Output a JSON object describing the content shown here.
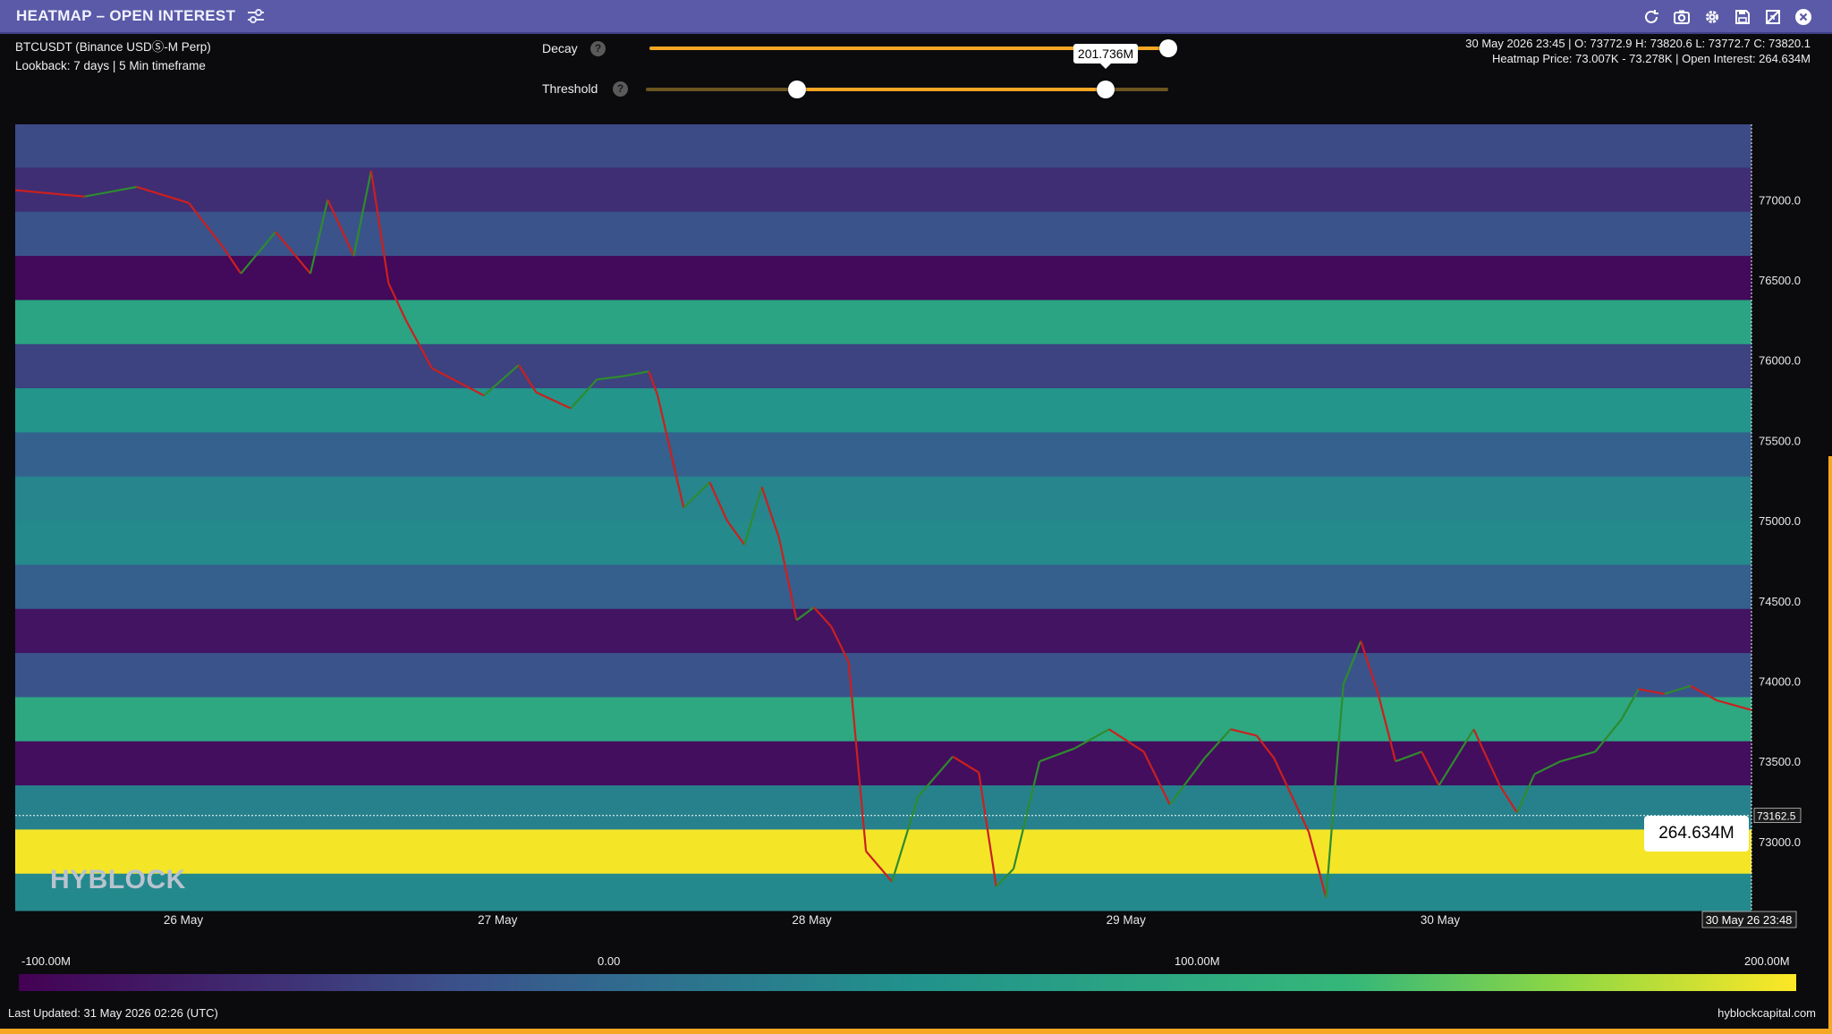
{
  "window": {
    "title": "HEATMAP – OPEN INTEREST",
    "icons": [
      "refresh-icon",
      "camera-icon",
      "gear-icon",
      "save-icon",
      "fullscreen-icon",
      "close-icon"
    ]
  },
  "info": {
    "symbol": "BTCUSDT (Binance USDⓈ-M Perp)",
    "lookback": "Lookback: 7 days | 5 Min timeframe",
    "ohlc": "30 May 2026 23:45 | O: 73772.9 H: 73820.6 L: 73772.7 C: 73820.1",
    "heatmap_info": "Heatmap Price: 73.007K - 73.278K | Open Interest: 264.634M"
  },
  "controls": {
    "decay_label": "Decay",
    "decay_level": 1.0,
    "threshold_label": "Threshold",
    "threshold_range": [
      0.29,
      0.88
    ],
    "threshold_tooltip": "201.736M",
    "help_glyph": "?"
  },
  "chart_data": {
    "type": "heatmap",
    "title": "HEATMAP – OPEN INTEREST",
    "x_ticks": [
      "26 May",
      "27 May",
      "28 May",
      "29 May",
      "30 May"
    ],
    "y_ticks": [
      "77000.0",
      "76500.0",
      "76000.0",
      "75500.0",
      "75000.0",
      "74500.0",
      "74000.0",
      "73500.0",
      "73000.0"
    ],
    "ylim": [
      72570,
      77470
    ],
    "x_range": [
      "25 May 2026 11:50",
      "30 May 2026 23:48"
    ],
    "crosshair_price": "73162.5",
    "crosshair_time": "30 May 26 23:48",
    "hover_value": "264.634M",
    "colorscale_min": "-100.00M",
    "colorscale_mid": "0.00",
    "colorscale_q3": "100.00M",
    "colorscale_max": "200.00M",
    "bands": [
      {
        "low": 77200,
        "high": 77470,
        "oi": -55
      },
      {
        "low": 76925,
        "high": 77200,
        "oi": -72
      },
      {
        "low": 76650,
        "high": 76925,
        "oi": -45
      },
      {
        "low": 76375,
        "high": 76650,
        "oi": -95
      },
      {
        "low": 76100,
        "high": 76375,
        "oi": 75
      },
      {
        "low": 75825,
        "high": 76100,
        "oi": -60
      },
      {
        "low": 75550,
        "high": 75825,
        "oi": 55
      },
      {
        "low": 75275,
        "high": 75550,
        "oi": -15
      },
      {
        "low": 75000,
        "high": 75275,
        "oi": 35
      },
      {
        "low": 74725,
        "high": 75000,
        "oi": 42
      },
      {
        "low": 74450,
        "high": 74725,
        "oi": -20
      },
      {
        "low": 74175,
        "high": 74450,
        "oi": -88
      },
      {
        "low": 73900,
        "high": 74175,
        "oi": -45
      },
      {
        "low": 73625,
        "high": 73900,
        "oi": 80
      },
      {
        "low": 73350,
        "high": 73625,
        "oi": -92
      },
      {
        "low": 73075,
        "high": 73350,
        "oi": 30
      },
      {
        "low": 72800,
        "high": 73075,
        "oi": 196
      },
      {
        "low": 72570,
        "high": 72800,
        "oi": 40
      }
    ],
    "price_path": [
      {
        "x": 0.0,
        "y": 77060
      },
      {
        "x": 0.04,
        "y": 77020
      },
      {
        "x": 0.07,
        "y": 77080
      },
      {
        "x": 0.1,
        "y": 76980
      },
      {
        "x": 0.12,
        "y": 76700
      },
      {
        "x": 0.13,
        "y": 76540
      },
      {
        "x": 0.15,
        "y": 76800
      },
      {
        "x": 0.17,
        "y": 76540
      },
      {
        "x": 0.18,
        "y": 77000
      },
      {
        "x": 0.195,
        "y": 76650
      },
      {
        "x": 0.205,
        "y": 77180
      },
      {
        "x": 0.215,
        "y": 76480
      },
      {
        "x": 0.225,
        "y": 76250
      },
      {
        "x": 0.24,
        "y": 75950
      },
      {
        "x": 0.27,
        "y": 75780
      },
      {
        "x": 0.29,
        "y": 75970
      },
      {
        "x": 0.3,
        "y": 75800
      },
      {
        "x": 0.32,
        "y": 75700
      },
      {
        "x": 0.335,
        "y": 75880
      },
      {
        "x": 0.35,
        "y": 75900
      },
      {
        "x": 0.365,
        "y": 75930
      },
      {
        "x": 0.37,
        "y": 75780
      },
      {
        "x": 0.385,
        "y": 75080
      },
      {
        "x": 0.4,
        "y": 75240
      },
      {
        "x": 0.41,
        "y": 75000
      },
      {
        "x": 0.42,
        "y": 74850
      },
      {
        "x": 0.43,
        "y": 75210
      },
      {
        "x": 0.44,
        "y": 74890
      },
      {
        "x": 0.45,
        "y": 74380
      },
      {
        "x": 0.46,
        "y": 74460
      },
      {
        "x": 0.47,
        "y": 74340
      },
      {
        "x": 0.48,
        "y": 74120
      },
      {
        "x": 0.49,
        "y": 72940
      },
      {
        "x": 0.505,
        "y": 72750
      },
      {
        "x": 0.52,
        "y": 73280
      },
      {
        "x": 0.54,
        "y": 73530
      },
      {
        "x": 0.555,
        "y": 73430
      },
      {
        "x": 0.565,
        "y": 72720
      },
      {
        "x": 0.575,
        "y": 72830
      },
      {
        "x": 0.59,
        "y": 73500
      },
      {
        "x": 0.61,
        "y": 73580
      },
      {
        "x": 0.63,
        "y": 73700
      },
      {
        "x": 0.65,
        "y": 73560
      },
      {
        "x": 0.665,
        "y": 73230
      },
      {
        "x": 0.685,
        "y": 73520
      },
      {
        "x": 0.7,
        "y": 73700
      },
      {
        "x": 0.715,
        "y": 73660
      },
      {
        "x": 0.725,
        "y": 73520
      },
      {
        "x": 0.745,
        "y": 73060
      },
      {
        "x": 0.755,
        "y": 72650
      },
      {
        "x": 0.765,
        "y": 73980
      },
      {
        "x": 0.775,
        "y": 74250
      },
      {
        "x": 0.785,
        "y": 73920
      },
      {
        "x": 0.795,
        "y": 73500
      },
      {
        "x": 0.81,
        "y": 73560
      },
      {
        "x": 0.82,
        "y": 73350
      },
      {
        "x": 0.84,
        "y": 73700
      },
      {
        "x": 0.855,
        "y": 73350
      },
      {
        "x": 0.865,
        "y": 73180
      },
      {
        "x": 0.875,
        "y": 73420
      },
      {
        "x": 0.89,
        "y": 73500
      },
      {
        "x": 0.91,
        "y": 73560
      },
      {
        "x": 0.925,
        "y": 73760
      },
      {
        "x": 0.935,
        "y": 73950
      },
      {
        "x": 0.95,
        "y": 73920
      },
      {
        "x": 0.965,
        "y": 73970
      },
      {
        "x": 0.98,
        "y": 73880
      },
      {
        "x": 1.0,
        "y": 73820
      }
    ]
  },
  "brand": {
    "watermark": "HYBLOCK",
    "last_updated": "Last Updated: 31 May 2026 02:26 (UTC)",
    "site": "hyblockcapital.com"
  },
  "colors": {
    "accent": "#f5a623",
    "titlebar": "#5a5aa8",
    "bull": "#2e8b2e",
    "bear": "#cc1f1f"
  }
}
